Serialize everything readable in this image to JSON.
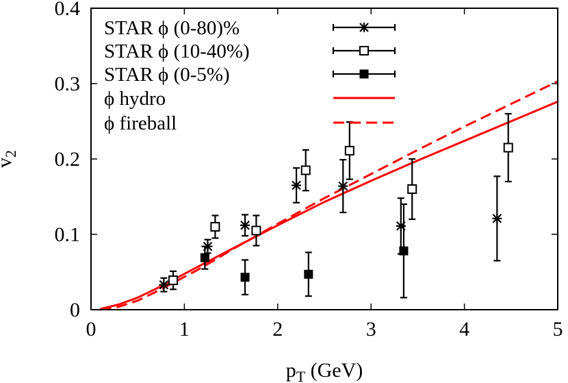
{
  "chart_data": {
    "type": "scatter",
    "xlabel": "p",
    "xlabel_sub": "T",
    "xlabel_unit": " (GeV)",
    "ylabel": "v",
    "ylabel_sub": "2",
    "xlim": [
      0,
      5
    ],
    "ylim": [
      0,
      0.4
    ],
    "x_ticks": [
      0,
      1,
      2,
      3,
      4,
      5
    ],
    "x_tick_labels": [
      "0",
      "1",
      "2",
      "3",
      "4",
      "5"
    ],
    "y_ticks": [
      0,
      0.1,
      0.2,
      0.3,
      0.4
    ],
    "y_tick_labels": [
      "0",
      "0.1",
      "0.2",
      "0.3",
      "0.4"
    ],
    "legend_position": "top-left",
    "series": [
      {
        "name": "STAR ϕ (0-80)%",
        "marker": "star",
        "color": "#000000",
        "points": [
          {
            "x": 0.78,
            "y": 0.033,
            "err": 0.009,
            "xerr": 0.1
          },
          {
            "x": 1.25,
            "y": 0.084,
            "err": 0.009,
            "xerr": 0.1
          },
          {
            "x": 1.65,
            "y": 0.112,
            "err": 0.014,
            "xerr": 0.1
          },
          {
            "x": 2.2,
            "y": 0.165,
            "err": 0.023,
            "xerr": 0.1
          },
          {
            "x": 2.7,
            "y": 0.164,
            "err": 0.035,
            "xerr": 0.1
          },
          {
            "x": 3.32,
            "y": 0.111,
            "err": 0.037,
            "xerr": 0.1
          },
          {
            "x": 4.35,
            "y": 0.121,
            "err": 0.056,
            "xerr": 0.1
          }
        ]
      },
      {
        "name": "STAR ϕ (10-40%)",
        "marker": "open-square",
        "color": "#000000",
        "points": [
          {
            "x": 0.88,
            "y": 0.039,
            "err": 0.012,
            "xerr": 0.1
          },
          {
            "x": 1.33,
            "y": 0.11,
            "err": 0.015,
            "xerr": 0.1
          },
          {
            "x": 1.77,
            "y": 0.105,
            "err": 0.02,
            "xerr": 0.1
          },
          {
            "x": 2.3,
            "y": 0.185,
            "err": 0.027,
            "xerr": 0.1
          },
          {
            "x": 2.77,
            "y": 0.211,
            "err": 0.038,
            "xerr": 0.1
          },
          {
            "x": 3.44,
            "y": 0.16,
            "err": 0.04,
            "xerr": 0.1
          },
          {
            "x": 4.47,
            "y": 0.215,
            "err": 0.045,
            "xerr": 0.1
          }
        ]
      },
      {
        "name": "STAR ϕ (0-5%)",
        "marker": "filled-square",
        "color": "#000000",
        "points": [
          {
            "x": 1.22,
            "y": 0.069,
            "err": 0.015,
            "xerr": 0.1
          },
          {
            "x": 1.65,
            "y": 0.043,
            "err": 0.023,
            "xerr": 0.1
          },
          {
            "x": 2.33,
            "y": 0.047,
            "err": 0.029,
            "xerr": 0.1
          },
          {
            "x": 3.35,
            "y": 0.078,
            "err": 0.062,
            "xerr": 0.1
          }
        ]
      },
      {
        "name": "ϕ hydro",
        "type": "line",
        "style": "solid",
        "color": "#ff0000",
        "x": [
          0.1,
          0.3,
          0.5,
          0.7,
          0.9,
          1.1,
          1.3,
          1.5,
          2.0,
          2.5,
          3.0,
          3.5,
          4.0,
          4.5,
          5.0
        ],
        "y": [
          0.001,
          0.007,
          0.016,
          0.028,
          0.041,
          0.054,
          0.067,
          0.08,
          0.112,
          0.143,
          0.171,
          0.198,
          0.224,
          0.25,
          0.276
        ]
      },
      {
        "name": "ϕ fireball",
        "type": "line",
        "style": "dashed",
        "color": "#ff0000",
        "x": [
          0.1,
          0.3,
          0.5,
          0.7,
          0.9,
          1.1,
          1.3,
          1.5,
          2.0,
          2.5,
          3.0,
          3.5,
          4.0,
          4.5,
          5.0
        ],
        "y": [
          0.0,
          0.004,
          0.012,
          0.024,
          0.037,
          0.05,
          0.064,
          0.079,
          0.114,
          0.148,
          0.18,
          0.212,
          0.243,
          0.273,
          0.303
        ]
      }
    ]
  }
}
